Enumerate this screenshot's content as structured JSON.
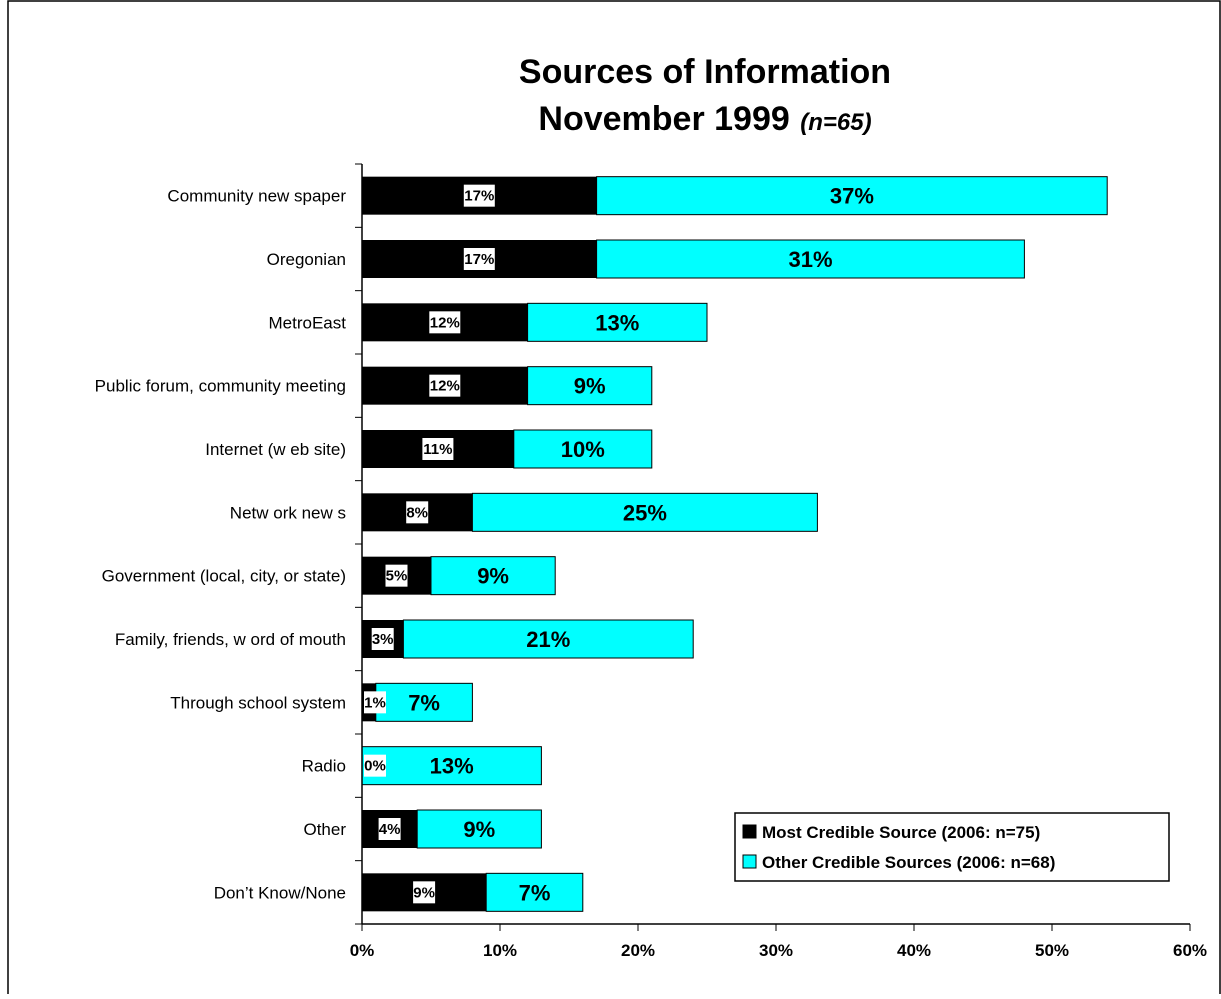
{
  "chart_data": {
    "type": "bar",
    "orientation": "horizontal",
    "stacked": true,
    "title": "Sources of Information",
    "subtitle": "November 1999",
    "subtitle_note": "(n=65)",
    "categories": [
      "Community new spaper",
      "Oregonian",
      "MetroEast",
      "Public forum, community meeting",
      "Internet (w eb site)",
      "Netw ork new s",
      "Government (local, city, or state)",
      "Family, friends, w ord of mouth",
      "Through school system",
      "Radio",
      "Other",
      "Don’t Know/None"
    ],
    "series": [
      {
        "name": "Most Credible Source (2006: n=75)",
        "color": "#000000",
        "values": [
          17,
          17,
          12,
          12,
          11,
          8,
          5,
          3,
          1,
          0,
          4,
          9
        ],
        "labels": [
          "17%",
          "17%",
          "12%",
          "12%",
          "11%",
          "8%",
          "5%",
          "3%",
          "1%",
          "0%",
          "4%",
          "9%"
        ]
      },
      {
        "name": "Other Credible Sources (2006: n=68)",
        "color": "#00ffff",
        "values": [
          37,
          31,
          13,
          9,
          10,
          25,
          9,
          21,
          7,
          13,
          9,
          7
        ],
        "labels": [
          "37%",
          "31%",
          "13%",
          "9%",
          "10%",
          "25%",
          "9%",
          "21%",
          "7%",
          "13%",
          "9%",
          "7%"
        ]
      }
    ],
    "xlim": [
      0,
      60
    ],
    "xticks": [
      0,
      10,
      20,
      30,
      40,
      50,
      60
    ],
    "xtick_labels": [
      "0%",
      "10%",
      "20%",
      "30%",
      "40%",
      "50%",
      "60%"
    ],
    "grid": false,
    "legend_position": "bottom-right"
  }
}
